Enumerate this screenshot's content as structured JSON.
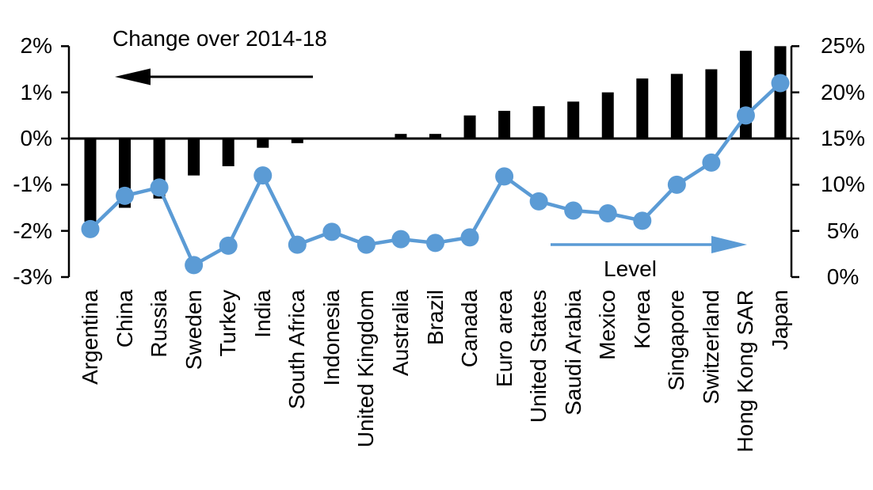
{
  "title": "Change over 2014-18",
  "level_label": "Level",
  "colors": {
    "bar": "#000000",
    "line": "#5B9BD5",
    "axis": "#000000"
  },
  "chart_data": {
    "type": "bar",
    "subtype": "dual-axis bar + line (dot markers)",
    "categories": [
      "Argentina",
      "China",
      "Russia",
      "Sweden",
      "Turkey",
      "India",
      "South Africa",
      "Indonesia",
      "United Kingdom",
      "Australia",
      "Brazil",
      "Canada",
      "Euro area",
      "United States",
      "Saudi Arabia",
      "Mexico",
      "Korea",
      "Singapore",
      "Switzerland",
      "Hong Kong SAR",
      "Japan"
    ],
    "series": [
      {
        "name": "Change over 2014-18",
        "type": "bar",
        "axis": "left",
        "values": [
          -1.8,
          -1.5,
          -1.3,
          -0.8,
          -0.6,
          -0.2,
          -0.1,
          0,
          0,
          0.1,
          0.1,
          0.5,
          0.6,
          0.7,
          0.8,
          1.0,
          1.3,
          1.4,
          1.5,
          1.9,
          2.0
        ]
      },
      {
        "name": "Level",
        "type": "line",
        "axis": "right",
        "values": [
          5.2,
          8.8,
          9.7,
          1.3,
          3.4,
          11.0,
          3.5,
          4.9,
          3.5,
          4.1,
          3.7,
          4.3,
          10.9,
          8.2,
          7.2,
          6.9,
          6.1,
          10.0,
          12.4,
          17.5,
          21.0
        ]
      }
    ],
    "left_axis": {
      "tick_labels": [
        "2%",
        "1%",
        "0%",
        "-1%",
        "-2%",
        "-3%"
      ],
      "tick_values": [
        2,
        1,
        0,
        -1,
        -2,
        -3
      ],
      "min": -3,
      "max": 2
    },
    "right_axis": {
      "tick_labels": [
        "25%",
        "20%",
        "15%",
        "10%",
        "5%",
        "0%"
      ],
      "tick_values": [
        25,
        20,
        15,
        10,
        5,
        0
      ],
      "min": 0,
      "max": 25
    },
    "annotations": [
      {
        "text": "Change over 2014-18",
        "arrow": "left",
        "arrow_color": "#000000"
      },
      {
        "text": "Level",
        "arrow": "right",
        "arrow_color": "#5B9BD5"
      }
    ],
    "grid": false,
    "legend_position": "in-plot arrows"
  }
}
